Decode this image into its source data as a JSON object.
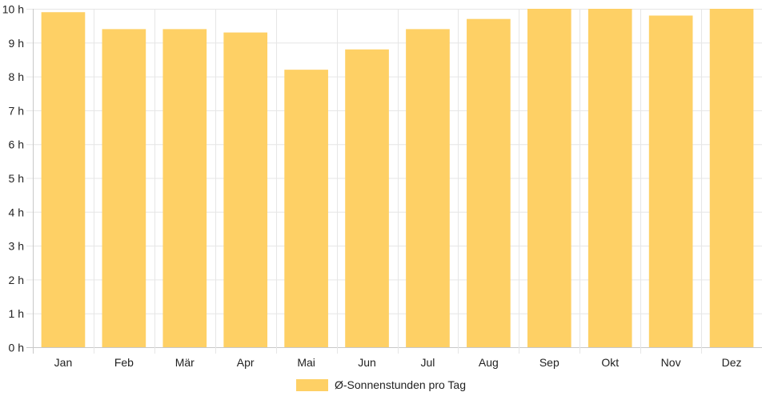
{
  "chart_data": {
    "type": "bar",
    "categories": [
      "Jan",
      "Feb",
      "Mär",
      "Apr",
      "Mai",
      "Jun",
      "Jul",
      "Aug",
      "Sep",
      "Okt",
      "Nov",
      "Dez"
    ],
    "series": [
      {
        "name": "Ø-Sonnenstunden pro Tag",
        "values": [
          9.9,
          9.4,
          9.4,
          9.3,
          8.2,
          8.8,
          9.4,
          9.7,
          10.0,
          10.0,
          9.8,
          10.0
        ],
        "color": "#fed065"
      }
    ],
    "y_ticks": [
      "0 h",
      "1 h",
      "2 h",
      "3 h",
      "4 h",
      "5 h",
      "6 h",
      "7 h",
      "8 h",
      "9 h",
      "10 h"
    ],
    "ylim": [
      0,
      10
    ],
    "grid": true,
    "legend_position": "bottom"
  }
}
